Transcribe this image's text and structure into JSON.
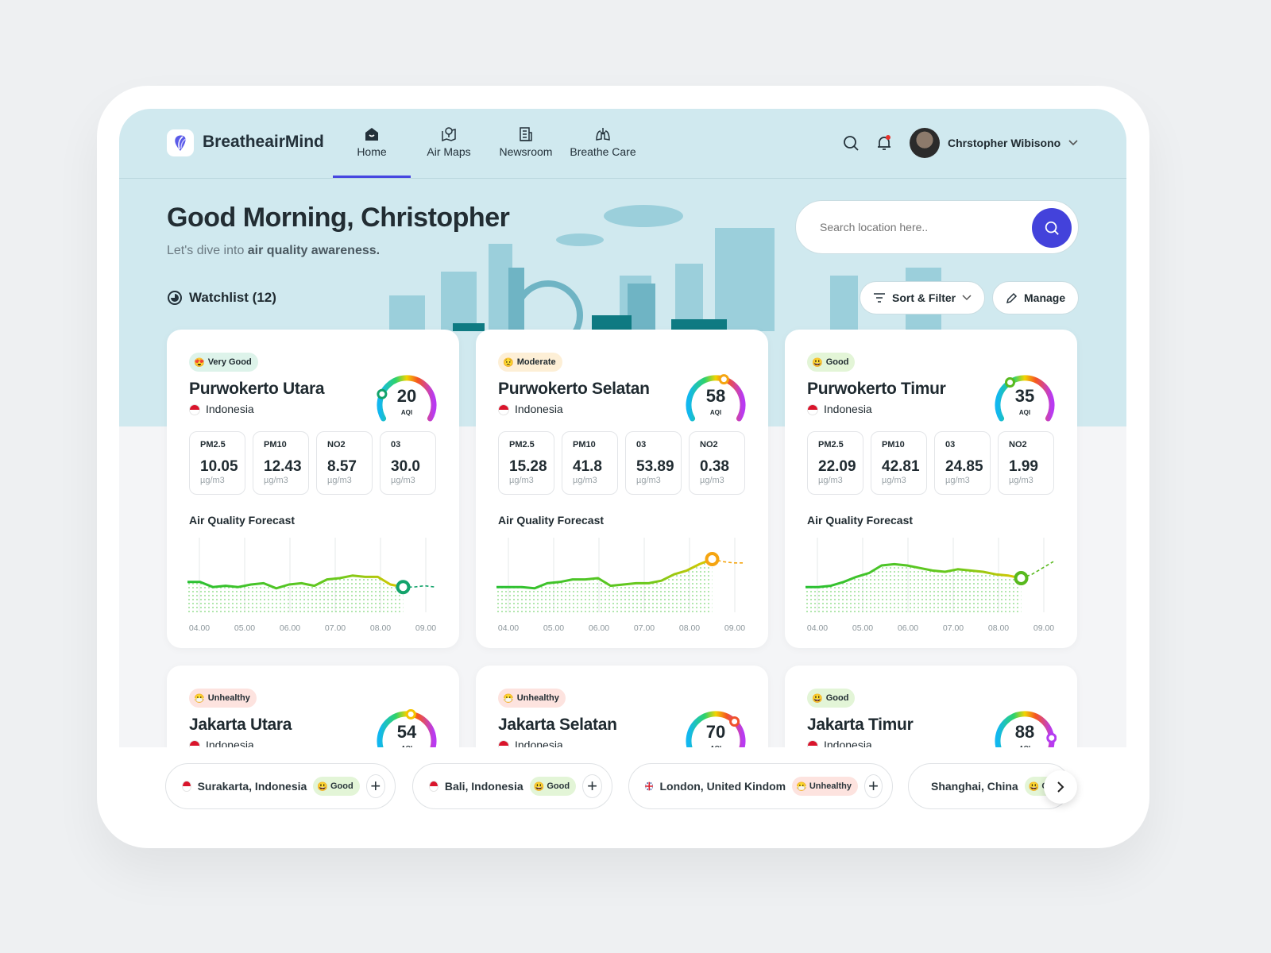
{
  "app": {
    "brand": "BreatheairMind",
    "accent": "#4342db"
  },
  "nav": {
    "items": [
      {
        "label": "Home",
        "icon": "home-icon",
        "active": true
      },
      {
        "label": "Air Maps",
        "icon": "map-pin-icon"
      },
      {
        "label": "Newsroom",
        "icon": "newspaper-icon"
      },
      {
        "label": "Breathe Care",
        "icon": "lungs-icon"
      }
    ]
  },
  "user": {
    "name": "Chrstopher Wibisono"
  },
  "hero": {
    "greeting": "Good Morning, Christopher",
    "subtitle_pre": "Let's dive into ",
    "subtitle_bold": "air quality awareness."
  },
  "watchlist": {
    "label": "Watchlist (12)"
  },
  "search": {
    "placeholder": "Search location here.."
  },
  "actions": {
    "sort_filter": "Sort & Filter",
    "manage": "Manage"
  },
  "forecast_title": "Air Quality Forecast",
  "unit": "µg/m3",
  "aqi_label": "AQI",
  "times": [
    "04.00",
    "05.00",
    "06.00",
    "07.00",
    "08.00",
    "09.00"
  ],
  "cards": [
    {
      "status": "Very Good",
      "emoji": "😍",
      "badge_bg": "#ddf3ea",
      "name": "Purwokerto Utara",
      "country": "Indonesia",
      "aqi": 20,
      "marker": "#13a36b",
      "metrics": [
        {
          "label": "PM2.5",
          "value": "10.05"
        },
        {
          "label": "PM10",
          "value": "12.43"
        },
        {
          "label": "NO2",
          "value": "8.57"
        },
        {
          "label": "03",
          "value": "30.0"
        }
      ],
      "forecast": [
        22,
        22,
        18,
        19,
        18,
        20,
        21,
        17,
        20,
        21,
        19,
        24,
        25,
        27,
        26,
        26,
        20,
        18
      ],
      "forecast_next": [
        18,
        19,
        18
      ]
    },
    {
      "status": "Moderate",
      "emoji": "😟",
      "badge_bg": "#fdefd6",
      "name": "Purwokerto Selatan",
      "country": "Indonesia",
      "aqi": 58,
      "marker": "#f5a511",
      "metrics": [
        {
          "label": "PM2.5",
          "value": "15.28"
        },
        {
          "label": "PM10",
          "value": "41.8"
        },
        {
          "label": "03",
          "value": "53.89"
        },
        {
          "label": "NO2",
          "value": "0.38"
        }
      ],
      "forecast": [
        18,
        18,
        18,
        17,
        21,
        22,
        24,
        24,
        25,
        19,
        20,
        21,
        21,
        23,
        28,
        31,
        36,
        40
      ],
      "forecast_next": [
        38,
        37,
        37
      ]
    },
    {
      "status": "Good",
      "emoji": "😃",
      "badge_bg": "#e3f5d7",
      "name": "Purwokerto Timur",
      "country": "Indonesia",
      "aqi": 35,
      "marker": "#58b91e",
      "metrics": [
        {
          "label": "PM2.5",
          "value": "22.09"
        },
        {
          "label": "PM10",
          "value": "42.81"
        },
        {
          "label": "03",
          "value": "24.85"
        },
        {
          "label": "NO2",
          "value": "1.99"
        }
      ],
      "forecast": [
        18,
        18,
        19,
        22,
        26,
        29,
        35,
        36,
        35,
        33,
        31,
        30,
        32,
        31,
        30,
        28,
        27,
        25
      ],
      "forecast_next": [
        28,
        33,
        38
      ]
    },
    {
      "status": "Unhealthy",
      "emoji": "😷",
      "badge_bg": "#fde3df",
      "name": "Jakarta Utara",
      "country": "Indonesia",
      "aqi": 54,
      "marker": "#f5c400"
    },
    {
      "status": "Unhealthy",
      "emoji": "😷",
      "badge_bg": "#fde3df",
      "name": "Jakarta Selatan",
      "country": "Indonesia",
      "aqi": 70,
      "marker": "#f0512c"
    },
    {
      "status": "Good",
      "emoji": "😃",
      "badge_bg": "#e3f5d7",
      "name": "Jakarta Timur",
      "country": "Indonesia",
      "aqi": 88,
      "marker": "#b43cf0"
    }
  ],
  "chips": [
    {
      "place": "Surakarta, Indonesia",
      "flag": "indonesia",
      "status": "Good",
      "emoji": "😃",
      "bg": "#e3f5d7"
    },
    {
      "place": "Bali, Indonesia",
      "flag": "indonesia",
      "status": "Good",
      "emoji": "😃",
      "bg": "#e3f5d7"
    },
    {
      "place": "London, United Kindom",
      "flag": "uk",
      "status": "Unhealthy",
      "emoji": "😷",
      "bg": "#fde3df"
    },
    {
      "place": "Shanghai, China",
      "flag": "china",
      "status": "Good",
      "emoji": "😃",
      "bg": "#e3f5d7"
    }
  ]
}
